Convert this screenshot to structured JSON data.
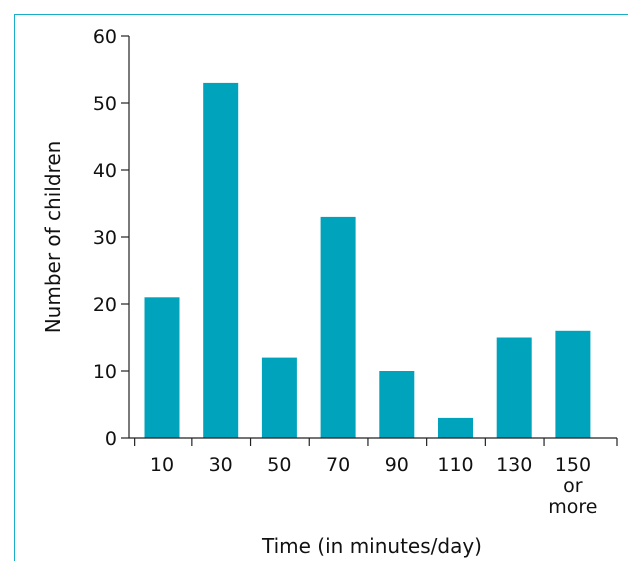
{
  "chart_data": {
    "type": "bar",
    "categories": [
      [
        "10"
      ],
      [
        "30"
      ],
      [
        "50"
      ],
      [
        "70"
      ],
      [
        "90"
      ],
      [
        "110"
      ],
      [
        "130"
      ],
      [
        "150",
        "or",
        "more"
      ]
    ],
    "values": [
      21,
      53,
      12,
      33,
      10,
      3,
      15,
      16
    ],
    "xlabel": "Time (in minutes/day)",
    "ylabel": "Number of children",
    "ylim": [
      0,
      60
    ],
    "yticks": [
      "0",
      "10",
      "20",
      "30",
      "40",
      "50",
      "60"
    ],
    "grid": false,
    "legend": "none"
  },
  "colors": {
    "bar": "#00A3BC",
    "frame": "#1AAFC6",
    "axis": "#222222"
  }
}
